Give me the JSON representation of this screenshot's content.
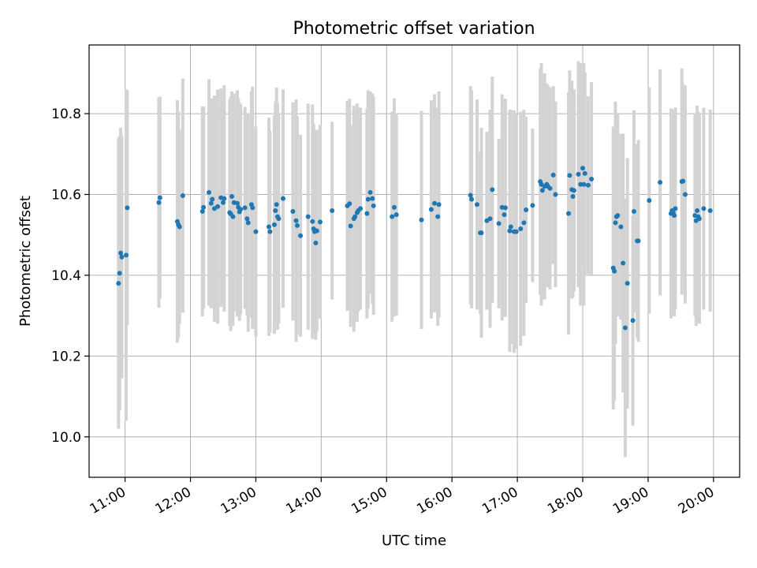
{
  "chart_data": {
    "type": "scatter",
    "title": "Photometric offset variation",
    "xlabel": "UTC time",
    "ylabel": "Photometric offset",
    "x_ticks": [
      "11:00",
      "12:00",
      "13:00",
      "14:00",
      "15:00",
      "16:00",
      "17:00",
      "18:00",
      "19:00",
      "20:00"
    ],
    "y_ticks": [
      "10.0",
      "10.2",
      "10.4",
      "10.6",
      "10.8"
    ],
    "y_tick_values": [
      10.0,
      10.2,
      10.4,
      10.6,
      10.8
    ],
    "xlim": [
      "10:27",
      "20:24"
    ],
    "ylim": [
      9.9,
      10.97
    ],
    "grid": true,
    "colors": {
      "point": "#1f77b4",
      "errorbar": "#d3d3d3",
      "grid": "#b0b0b0"
    },
    "series": [
      {
        "points": [
          {
            "t": "10:54",
            "y": 10.38,
            "err": 0.36
          },
          {
            "t": "10:55",
            "y": 10.405,
            "err": 0.34
          },
          {
            "t": "10:56",
            "y": 10.455,
            "err": 0.31
          },
          {
            "t": "10:57",
            "y": 10.445,
            "err": 0.3
          },
          {
            "t": "11:01",
            "y": 10.45,
            "err": 0.41
          },
          {
            "t": "11:02",
            "y": 10.567,
            "err": 0.29
          },
          {
            "t": "11:31",
            "y": 10.58,
            "err": 0.26
          },
          {
            "t": "11:32",
            "y": 10.592,
            "err": 0.25
          },
          {
            "t": "11:48",
            "y": 10.533,
            "err": 0.3
          },
          {
            "t": "11:49",
            "y": 10.525,
            "err": 0.28
          },
          {
            "t": "11:50",
            "y": 10.52,
            "err": 0.24
          },
          {
            "t": "11:53",
            "y": 10.597,
            "err": 0.29
          },
          {
            "t": "12:11",
            "y": 10.558,
            "err": 0.26
          },
          {
            "t": "12:12",
            "y": 10.568,
            "err": 0.25
          },
          {
            "t": "12:17",
            "y": 10.605,
            "err": 0.28
          },
          {
            "t": "12:19",
            "y": 10.578,
            "err": 0.26
          },
          {
            "t": "12:20",
            "y": 10.588,
            "err": 0.25
          },
          {
            "t": "12:22",
            "y": 10.565,
            "err": 0.28
          },
          {
            "t": "12:25",
            "y": 10.57,
            "err": 0.29
          },
          {
            "t": "12:28",
            "y": 10.592,
            "err": 0.27
          },
          {
            "t": "12:30",
            "y": 10.58,
            "err": 0.25
          },
          {
            "t": "12:31",
            "y": 10.59,
            "err": 0.28
          },
          {
            "t": "12:36",
            "y": 10.555,
            "err": 0.28
          },
          {
            "t": "12:37",
            "y": 10.552,
            "err": 0.29
          },
          {
            "t": "12:38",
            "y": 10.595,
            "err": 0.26
          },
          {
            "t": "12:39",
            "y": 10.545,
            "err": 0.27
          },
          {
            "t": "12:40",
            "y": 10.58,
            "err": 0.27
          },
          {
            "t": "12:43",
            "y": 10.578,
            "err": 0.28
          },
          {
            "t": "12:44",
            "y": 10.568,
            "err": 0.27
          },
          {
            "t": "12:45",
            "y": 10.557,
            "err": 0.27
          },
          {
            "t": "12:46",
            "y": 10.563,
            "err": 0.26
          },
          {
            "t": "12:50",
            "y": 10.567,
            "err": 0.25
          },
          {
            "t": "12:52",
            "y": 10.54,
            "err": 0.24
          },
          {
            "t": "12:53",
            "y": 10.53,
            "err": 0.27
          },
          {
            "t": "12:56",
            "y": 10.575,
            "err": 0.28
          },
          {
            "t": "12:57",
            "y": 10.567,
            "err": 0.3
          },
          {
            "t": "13:00",
            "y": 10.508,
            "err": 0.26
          },
          {
            "t": "13:12",
            "y": 10.52,
            "err": 0.27
          },
          {
            "t": "13:13",
            "y": 10.508,
            "err": 0.25
          },
          {
            "t": "13:17",
            "y": 10.525,
            "err": 0.27
          },
          {
            "t": "13:18",
            "y": 10.56,
            "err": 0.27
          },
          {
            "t": "13:19",
            "y": 10.575,
            "err": 0.29
          },
          {
            "t": "13:20",
            "y": 10.545,
            "err": 0.28
          },
          {
            "t": "13:21",
            "y": 10.54,
            "err": 0.26
          },
          {
            "t": "13:25",
            "y": 10.59,
            "err": 0.27
          },
          {
            "t": "13:34",
            "y": 10.558,
            "err": 0.27
          },
          {
            "t": "13:37",
            "y": 10.535,
            "err": 0.3
          },
          {
            "t": "13:38",
            "y": 10.523,
            "err": 0.27
          },
          {
            "t": "13:41",
            "y": 10.498,
            "err": 0.25
          },
          {
            "t": "13:48",
            "y": 10.545,
            "err": 0.28
          },
          {
            "t": "13:52",
            "y": 10.533,
            "err": 0.29
          },
          {
            "t": "13:53",
            "y": 10.515,
            "err": 0.26
          },
          {
            "t": "13:54",
            "y": 10.508,
            "err": 0.25
          },
          {
            "t": "13:55",
            "y": 10.48,
            "err": 0.24
          },
          {
            "t": "13:56",
            "y": 10.51,
            "err": 0.25
          },
          {
            "t": "13:59",
            "y": 10.532,
            "err": 0.24
          },
          {
            "t": "14:10",
            "y": 10.56,
            "err": 0.22
          },
          {
            "t": "14:24",
            "y": 10.572,
            "err": 0.26
          },
          {
            "t": "14:26",
            "y": 10.577,
            "err": 0.26
          },
          {
            "t": "14:27",
            "y": 10.522,
            "err": 0.25
          },
          {
            "t": "14:30",
            "y": 10.54,
            "err": 0.28
          },
          {
            "t": "14:31",
            "y": 10.545,
            "err": 0.26
          },
          {
            "t": "14:33",
            "y": 10.555,
            "err": 0.27
          },
          {
            "t": "14:34",
            "y": 10.56,
            "err": 0.25
          },
          {
            "t": "14:36",
            "y": 10.565,
            "err": 0.25
          },
          {
            "t": "14:42",
            "y": 10.553,
            "err": 0.26
          },
          {
            "t": "14:43",
            "y": 10.588,
            "err": 0.27
          },
          {
            "t": "14:45",
            "y": 10.605,
            "err": 0.25
          },
          {
            "t": "14:47",
            "y": 10.59,
            "err": 0.26
          },
          {
            "t": "14:48",
            "y": 10.572,
            "err": 0.27
          },
          {
            "t": "15:05",
            "y": 10.545,
            "err": 0.26
          },
          {
            "t": "15:07",
            "y": 10.568,
            "err": 0.27
          },
          {
            "t": "15:09",
            "y": 10.55,
            "err": 0.25
          },
          {
            "t": "15:32",
            "y": 10.537,
            "err": 0.27
          },
          {
            "t": "15:41",
            "y": 10.563,
            "err": 0.27
          },
          {
            "t": "15:44",
            "y": 10.578,
            "err": 0.27
          },
          {
            "t": "15:47",
            "y": 10.545,
            "err": 0.27
          },
          {
            "t": "15:48",
            "y": 10.575,
            "err": 0.28
          },
          {
            "t": "16:17",
            "y": 10.598,
            "err": 0.27
          },
          {
            "t": "16:18",
            "y": 10.588,
            "err": 0.27
          },
          {
            "t": "16:23",
            "y": 10.575,
            "err": 0.26
          },
          {
            "t": "16:26",
            "y": 10.505,
            "err": 0.2
          },
          {
            "t": "16:27",
            "y": 10.505,
            "err": 0.26
          },
          {
            "t": "16:32",
            "y": 10.535,
            "err": 0.22
          },
          {
            "t": "16:35",
            "y": 10.54,
            "err": 0.27
          },
          {
            "t": "16:37",
            "y": 10.612,
            "err": 0.28
          },
          {
            "t": "16:43",
            "y": 10.528,
            "err": 0.21
          },
          {
            "t": "16:46",
            "y": 10.568,
            "err": 0.28
          },
          {
            "t": "16:48",
            "y": 10.55,
            "err": 0.25
          },
          {
            "t": "16:49",
            "y": 10.567,
            "err": 0.27
          },
          {
            "t": "16:53",
            "y": 10.51,
            "err": 0.3
          },
          {
            "t": "16:54",
            "y": 10.52,
            "err": 0.29
          },
          {
            "t": "16:57",
            "y": 10.508,
            "err": 0.3
          },
          {
            "t": "16:59",
            "y": 10.508,
            "err": 0.29
          },
          {
            "t": "17:03",
            "y": 10.515,
            "err": 0.29
          },
          {
            "t": "17:06",
            "y": 10.53,
            "err": 0.28
          },
          {
            "t": "17:08",
            "y": 10.562,
            "err": 0.23
          },
          {
            "t": "17:14",
            "y": 10.573,
            "err": 0.19
          },
          {
            "t": "17:21",
            "y": 10.632,
            "err": 0.28
          },
          {
            "t": "17:22",
            "y": 10.625,
            "err": 0.3
          },
          {
            "t": "17:23",
            "y": 10.61,
            "err": 0.27
          },
          {
            "t": "17:25",
            "y": 10.62,
            "err": 0.28
          },
          {
            "t": "17:27",
            "y": 10.625,
            "err": 0.25
          },
          {
            "t": "17:28",
            "y": 10.62,
            "err": 0.25
          },
          {
            "t": "17:30",
            "y": 10.615,
            "err": 0.25
          },
          {
            "t": "17:33",
            "y": 10.648,
            "err": 0.22
          },
          {
            "t": "17:35",
            "y": 10.6,
            "err": 0.23
          },
          {
            "t": "17:47",
            "y": 10.553,
            "err": 0.3
          },
          {
            "t": "17:48",
            "y": 10.647,
            "err": 0.26
          },
          {
            "t": "17:50",
            "y": 10.612,
            "err": 0.27
          },
          {
            "t": "17:51",
            "y": 10.595,
            "err": 0.25
          },
          {
            "t": "17:52",
            "y": 10.61,
            "err": 0.25
          },
          {
            "t": "17:56",
            "y": 10.65,
            "err": 0.28
          },
          {
            "t": "17:58",
            "y": 10.625,
            "err": 0.3
          },
          {
            "t": "18:00",
            "y": 10.665,
            "err": 0.24
          },
          {
            "t": "18:01",
            "y": 10.625,
            "err": 0.3
          },
          {
            "t": "18:02",
            "y": 10.652,
            "err": 0.25
          },
          {
            "t": "18:05",
            "y": 10.623,
            "err": 0.22
          },
          {
            "t": "18:08",
            "y": 10.638,
            "err": 0.24
          },
          {
            "t": "18:28",
            "y": 10.418,
            "err": 0.35
          },
          {
            "t": "18:29",
            "y": 10.41,
            "err": 0.32
          },
          {
            "t": "18:30",
            "y": 10.53,
            "err": 0.3
          },
          {
            "t": "18:31",
            "y": 10.545,
            "err": 0.23
          },
          {
            "t": "18:32",
            "y": 10.548,
            "err": 0.25
          },
          {
            "t": "18:35",
            "y": 10.52,
            "err": 0.23
          },
          {
            "t": "18:37",
            "y": 10.43,
            "err": 0.32
          },
          {
            "t": "18:39",
            "y": 10.27,
            "err": 0.32
          },
          {
            "t": "18:41",
            "y": 10.38,
            "err": 0.31
          },
          {
            "t": "18:46",
            "y": 10.288,
            "err": 0.26
          },
          {
            "t": "18:47",
            "y": 10.558,
            "err": 0.25
          },
          {
            "t": "18:50",
            "y": 10.485,
            "err": 0.24
          },
          {
            "t": "18:51",
            "y": 10.485,
            "err": 0.25
          },
          {
            "t": "19:01",
            "y": 10.585,
            "err": 0.28
          },
          {
            "t": "19:11",
            "y": 10.63,
            "err": 0.28
          },
          {
            "t": "19:21",
            "y": 10.553,
            "err": 0.26
          },
          {
            "t": "19:22",
            "y": 10.56,
            "err": 0.25
          },
          {
            "t": "19:23",
            "y": 10.555,
            "err": 0.25
          },
          {
            "t": "19:24",
            "y": 10.548,
            "err": 0.25
          },
          {
            "t": "19:25",
            "y": 10.565,
            "err": 0.25
          },
          {
            "t": "19:31",
            "y": 10.632,
            "err": 0.28
          },
          {
            "t": "19:32",
            "y": 10.633,
            "err": 0.24
          },
          {
            "t": "19:34",
            "y": 10.6,
            "err": 0.27
          },
          {
            "t": "19:43",
            "y": 10.548,
            "err": 0.25
          },
          {
            "t": "19:44",
            "y": 10.535,
            "err": 0.26
          },
          {
            "t": "19:45",
            "y": 10.56,
            "err": 0.26
          },
          {
            "t": "19:46",
            "y": 10.545,
            "err": 0.26
          },
          {
            "t": "19:47",
            "y": 10.54,
            "err": 0.26
          },
          {
            "t": "19:51",
            "y": 10.565,
            "err": 0.25
          },
          {
            "t": "19:57",
            "y": 10.56,
            "err": 0.25
          }
        ]
      }
    ]
  }
}
